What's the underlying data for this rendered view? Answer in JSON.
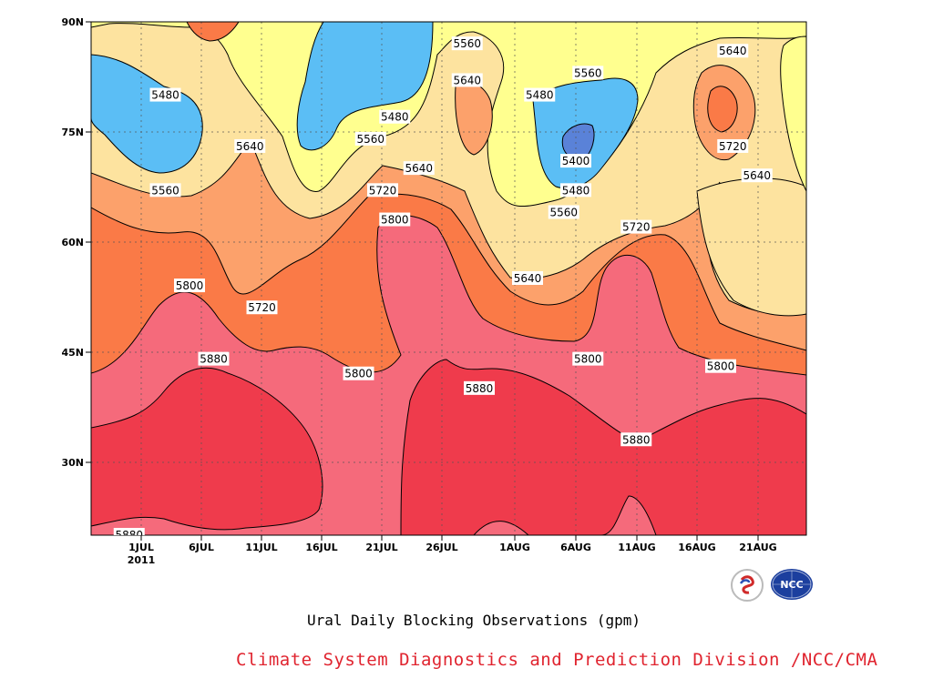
{
  "chart_data": {
    "type": "contour",
    "xlabel": "",
    "ylabel": "",
    "x_tick_labels": [
      "1JUL",
      "6JUL",
      "11JUL",
      "16JUL",
      "21JUL",
      "26JUL",
      "1AUG",
      "6AUG",
      "11AUG",
      "16AUG",
      "21AUG"
    ],
    "x_tick_sublabel": "2011",
    "y_tick_labels": [
      "90N",
      "75N",
      "60N",
      "45N",
      "30N"
    ],
    "ylim": [
      20,
      90
    ],
    "contour_levels": [
      5400,
      5480,
      5560,
      5640,
      5720,
      5800,
      5880
    ],
    "fill_colors": {
      "below_5400": "#5a82d8",
      "5400_5480": "#5bbef5",
      "5480_5560": "#ffff8f",
      "5560_5640": "#fde39f",
      "5640_5720": "#fca16b",
      "5720_5800": "#fa7a47",
      "5800_5880": "#f56a7b",
      "above_5880": "#ef3b4c"
    },
    "contour_labels": [
      {
        "text": "5480",
        "date": "3JUL",
        "lat": 80
      },
      {
        "text": "5560",
        "date": "3JUL",
        "lat": 67
      },
      {
        "text": "5640",
        "date": "10JUL",
        "lat": 73
      },
      {
        "text": "5800",
        "date": "5JUL",
        "lat": 54
      },
      {
        "text": "5720",
        "date": "11JUL",
        "lat": 51
      },
      {
        "text": "5880",
        "date": "7JUL",
        "lat": 44
      },
      {
        "text": "5880",
        "date": "30JUN",
        "lat": 20
      },
      {
        "text": "5480",
        "date": "22JUL",
        "lat": 77
      },
      {
        "text": "5560",
        "date": "20JUL",
        "lat": 74
      },
      {
        "text": "5640",
        "date": "24JUL",
        "lat": 70
      },
      {
        "text": "5720",
        "date": "21JUL",
        "lat": 67
      },
      {
        "text": "5800",
        "date": "22JUL",
        "lat": 63
      },
      {
        "text": "5800",
        "date": "19JUL",
        "lat": 42
      },
      {
        "text": "5560",
        "date": "28JUL",
        "lat": 87
      },
      {
        "text": "5640",
        "date": "28JUL",
        "lat": 82
      },
      {
        "text": "5880",
        "date": "29JUL",
        "lat": 40
      },
      {
        "text": "5480",
        "date": "3AUG",
        "lat": 80
      },
      {
        "text": "5560",
        "date": "7AUG",
        "lat": 83
      },
      {
        "text": "5400",
        "date": "6AUG",
        "lat": 71
      },
      {
        "text": "5480",
        "date": "6AUG",
        "lat": 67
      },
      {
        "text": "5560",
        "date": "5AUG",
        "lat": 64
      },
      {
        "text": "5640",
        "date": "2AUG",
        "lat": 55
      },
      {
        "text": "5720",
        "date": "11AUG",
        "lat": 62
      },
      {
        "text": "5800",
        "date": "7AUG",
        "lat": 44
      },
      {
        "text": "5880",
        "date": "11AUG",
        "lat": 33
      },
      {
        "text": "5640",
        "date": "19AUG",
        "lat": 86
      },
      {
        "text": "5720",
        "date": "19AUG",
        "lat": 73
      },
      {
        "text": "5640",
        "date": "21AUG",
        "lat": 69
      },
      {
        "text": "5800",
        "date": "18AUG",
        "lat": 43
      }
    ]
  },
  "title": "Ural Daily Blocking Observations (gpm)",
  "credit": "Climate System Diagnostics and Prediction Division /NCC/CMA",
  "logos": {
    "bcc": "bcc-logo-icon",
    "ncc": "ncc-logo-icon"
  }
}
